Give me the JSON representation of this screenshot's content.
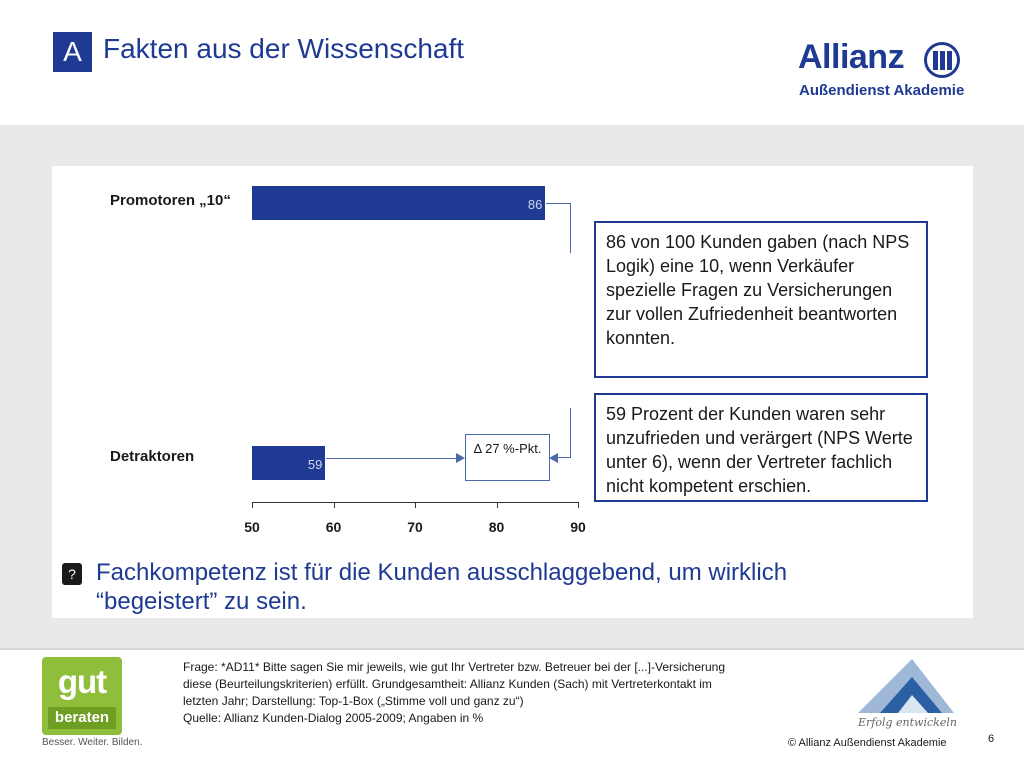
{
  "header": {
    "section_letter": "A",
    "title": "Fakten aus der Wissenschaft",
    "brand": {
      "name": "Allianz",
      "subtitle": "Außendienst Akademie",
      "emblem_icon": "allianz-eagle-icon"
    }
  },
  "chart_data": {
    "type": "bar",
    "orientation": "horizontal",
    "categories": [
      "Promotoren „10“",
      "Detraktoren"
    ],
    "values": [
      86,
      59
    ],
    "data_labels": [
      "86",
      "59"
    ],
    "xlim": [
      50,
      90
    ],
    "x_ticks": [
      "50",
      "60",
      "70",
      "80",
      "90"
    ],
    "grid": false,
    "bar_color": "#1f3a93",
    "delta_label": "Δ 27 %-Pkt."
  },
  "callouts": [
    "86 von 100 Kunden gaben (nach NPS Logik) eine 10, wenn Verkäufer spezielle Fragen zu Versicherungen zur vollen Zufriedenheit beantworten konnten.",
    "59 Prozent der Kunden waren sehr unzufrieden und verärgert (NPS Werte unter 6), wenn der Vertreter fachlich nicht kompetent erschien."
  ],
  "bullet": {
    "icon": "square-bullet-icon",
    "text": "Fachkompetenz ist für die Kunden ausschlaggebend, um wirklich “begeistert” zu sein."
  },
  "footer": {
    "gut_logo": {
      "top": "gut",
      "bottom": "beraten",
      "tagline": "Besser. Weiter. Bilden."
    },
    "source_lines": [
      "Frage: *AD11* Bitte sagen Sie mir jeweils, wie gut Ihr Vertreter bzw. Betreuer bei der [...]-Versicherung",
      "diese (Beurteilungskriterien) erfüllt. Grundgesamtheit: Allianz Kunden (Sach) mit Vertreterkontakt im",
      "letzten Jahr; Darstellung: Top-1-Box („Stimme voll und ganz zu“)",
      "Quelle: Allianz Kunden-Dialog 2005-2009; Angaben in %"
    ],
    "slogan": "Erfolg entwickeln",
    "copyright": "© Allianz Außendienst Akademie",
    "page_number": "6"
  },
  "colors": {
    "primary": "#1f3a93",
    "band": "#e9e9e9",
    "green": "#8fbf3a"
  }
}
